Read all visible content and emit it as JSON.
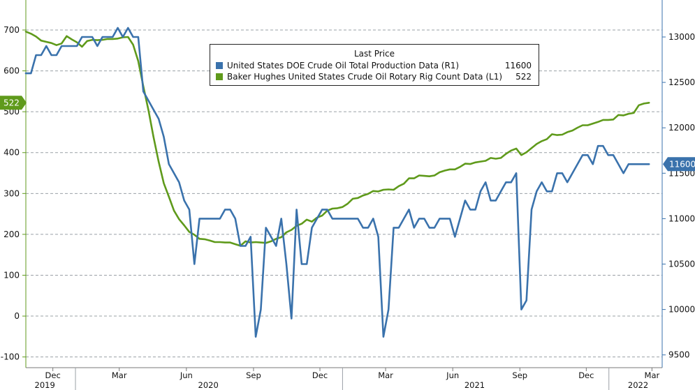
{
  "legend": {
    "header": "Last Price",
    "series": [
      {
        "label": "United States DOE Crude Oil Total Production Data  (R1)",
        "value": "11600",
        "color": "#3a72ac"
      },
      {
        "label": "Baker Hughes United States Crude Oil Rotary Rig Count Data  (L1)",
        "value": "522",
        "color": "#5f9a1b"
      }
    ]
  },
  "badges": {
    "left": "522",
    "right": "11600"
  },
  "chart_data": {
    "type": "line",
    "x_tick_labels": [
      "Dec",
      "Mar",
      "Jun",
      "Sep",
      "Dec",
      "Mar",
      "Jun",
      "Sep",
      "Dec",
      "Mar"
    ],
    "year_labels": [
      "2019",
      "2020",
      "2021",
      "2022"
    ],
    "y_left": {
      "ticks": [
        700,
        600,
        500,
        400,
        300,
        200,
        100,
        0,
        -100
      ],
      "range": [
        -110,
        770
      ]
    },
    "y_right": {
      "ticks": [
        13000,
        12500,
        12000,
        11500,
        11000,
        10500,
        10000,
        9500
      ],
      "range": [
        9400,
        13400
      ]
    },
    "series": [
      {
        "name": "Baker Hughes United States Crude Oil Rotary Rig Count Data  (L1)",
        "axis": "left",
        "color": "#5f9a1b",
        "last": 522,
        "points": [
          [
            "2019-10-25",
            696
          ],
          [
            "2019-11-01",
            691
          ],
          [
            "2019-11-08",
            684
          ],
          [
            "2019-11-15",
            674
          ],
          [
            "2019-11-22",
            671
          ],
          [
            "2019-11-29",
            668
          ],
          [
            "2019-12-06",
            663
          ],
          [
            "2019-12-13",
            667
          ],
          [
            "2019-12-20",
            685
          ],
          [
            "2019-12-27",
            677
          ],
          [
            "2020-01-03",
            670
          ],
          [
            "2020-01-10",
            659
          ],
          [
            "2020-01-17",
            673
          ],
          [
            "2020-01-24",
            676
          ],
          [
            "2020-01-31",
            675
          ],
          [
            "2020-02-07",
            676
          ],
          [
            "2020-02-14",
            678
          ],
          [
            "2020-02-21",
            678
          ],
          [
            "2020-02-28",
            679
          ],
          [
            "2020-03-06",
            682
          ],
          [
            "2020-03-13",
            683
          ],
          [
            "2020-03-20",
            664
          ],
          [
            "2020-03-27",
            624
          ],
          [
            "2020-04-03",
            562
          ],
          [
            "2020-04-10",
            504
          ],
          [
            "2020-04-17",
            438
          ],
          [
            "2020-04-24",
            378
          ],
          [
            "2020-05-01",
            325
          ],
          [
            "2020-05-08",
            292
          ],
          [
            "2020-05-15",
            258
          ],
          [
            "2020-05-22",
            237
          ],
          [
            "2020-05-29",
            222
          ],
          [
            "2020-06-05",
            206
          ],
          [
            "2020-06-12",
            199
          ],
          [
            "2020-06-19",
            189
          ],
          [
            "2020-06-26",
            188
          ],
          [
            "2020-07-03",
            185
          ],
          [
            "2020-07-10",
            181
          ],
          [
            "2020-07-17",
            181
          ],
          [
            "2020-07-24",
            180
          ],
          [
            "2020-07-31",
            180
          ],
          [
            "2020-08-07",
            176
          ],
          [
            "2020-08-14",
            172
          ],
          [
            "2020-08-21",
            183
          ],
          [
            "2020-08-28",
            180
          ],
          [
            "2020-09-04",
            181
          ],
          [
            "2020-09-11",
            180
          ],
          [
            "2020-09-18",
            179
          ],
          [
            "2020-09-25",
            183
          ],
          [
            "2020-10-02",
            189
          ],
          [
            "2020-10-09",
            193
          ],
          [
            "2020-10-16",
            205
          ],
          [
            "2020-10-23",
            211
          ],
          [
            "2020-10-30",
            221
          ],
          [
            "2020-11-06",
            226
          ],
          [
            "2020-11-13",
            236
          ],
          [
            "2020-11-20",
            231
          ],
          [
            "2020-11-27",
            241
          ],
          [
            "2020-12-04",
            246
          ],
          [
            "2020-12-11",
            258
          ],
          [
            "2020-12-18",
            263
          ],
          [
            "2020-12-25",
            264
          ],
          [
            "2021-01-01",
            267
          ],
          [
            "2021-01-08",
            275
          ],
          [
            "2021-01-15",
            287
          ],
          [
            "2021-01-22",
            289
          ],
          [
            "2021-01-29",
            295
          ],
          [
            "2021-02-05",
            299
          ],
          [
            "2021-02-12",
            306
          ],
          [
            "2021-02-19",
            305
          ],
          [
            "2021-02-26",
            309
          ],
          [
            "2021-03-05",
            310
          ],
          [
            "2021-03-12",
            309
          ],
          [
            "2021-03-19",
            318
          ],
          [
            "2021-03-26",
            324
          ],
          [
            "2021-04-02",
            337
          ],
          [
            "2021-04-09",
            337
          ],
          [
            "2021-04-16",
            344
          ],
          [
            "2021-04-23",
            343
          ],
          [
            "2021-04-30",
            342
          ],
          [
            "2021-05-07",
            344
          ],
          [
            "2021-05-14",
            352
          ],
          [
            "2021-05-21",
            356
          ],
          [
            "2021-05-28",
            359
          ],
          [
            "2021-06-04",
            359
          ],
          [
            "2021-06-11",
            365
          ],
          [
            "2021-06-18",
            373
          ],
          [
            "2021-06-25",
            372
          ],
          [
            "2021-07-02",
            376
          ],
          [
            "2021-07-09",
            378
          ],
          [
            "2021-07-16",
            380
          ],
          [
            "2021-07-23",
            387
          ],
          [
            "2021-07-30",
            385
          ],
          [
            "2021-08-06",
            387
          ],
          [
            "2021-08-13",
            397
          ],
          [
            "2021-08-20",
            405
          ],
          [
            "2021-08-27",
            410
          ],
          [
            "2021-09-03",
            394
          ],
          [
            "2021-09-10",
            401
          ],
          [
            "2021-09-17",
            411
          ],
          [
            "2021-09-24",
            421
          ],
          [
            "2021-10-01",
            428
          ],
          [
            "2021-10-08",
            433
          ],
          [
            "2021-10-15",
            445
          ],
          [
            "2021-10-22",
            443
          ],
          [
            "2021-10-29",
            444
          ],
          [
            "2021-11-05",
            450
          ],
          [
            "2021-11-12",
            454
          ],
          [
            "2021-11-19",
            461
          ],
          [
            "2021-11-26",
            467
          ],
          [
            "2021-12-03",
            467
          ],
          [
            "2021-12-10",
            471
          ],
          [
            "2021-12-17",
            475
          ],
          [
            "2021-12-24",
            480
          ],
          [
            "2021-12-31",
            480
          ],
          [
            "2022-01-07",
            481
          ],
          [
            "2022-01-14",
            492
          ],
          [
            "2022-01-21",
            491
          ],
          [
            "2022-01-28",
            495
          ],
          [
            "2022-02-04",
            497
          ],
          [
            "2022-02-11",
            516
          ],
          [
            "2022-02-18",
            520
          ],
          [
            "2022-02-25",
            522
          ]
        ]
      },
      {
        "name": "United States DOE Crude Oil Total Production Data  (R1)",
        "axis": "right",
        "color": "#3a72ac",
        "last": 11600,
        "points": [
          [
            "2019-10-25",
            12600
          ],
          [
            "2019-11-01",
            12600
          ],
          [
            "2019-11-08",
            12800
          ],
          [
            "2019-11-15",
            12800
          ],
          [
            "2019-11-22",
            12900
          ],
          [
            "2019-11-29",
            12800
          ],
          [
            "2019-12-06",
            12800
          ],
          [
            "2019-12-13",
            12900
          ],
          [
            "2019-12-20",
            12900
          ],
          [
            "2019-12-27",
            12900
          ],
          [
            "2020-01-03",
            12900
          ],
          [
            "2020-01-10",
            13000
          ],
          [
            "2020-01-17",
            13000
          ],
          [
            "2020-01-24",
            13000
          ],
          [
            "2020-01-31",
            12900
          ],
          [
            "2020-02-07",
            13000
          ],
          [
            "2020-02-14",
            13000
          ],
          [
            "2020-02-21",
            13000
          ],
          [
            "2020-02-28",
            13100
          ],
          [
            "2020-03-06",
            13000
          ],
          [
            "2020-03-13",
            13100
          ],
          [
            "2020-03-20",
            13000
          ],
          [
            "2020-03-27",
            13000
          ],
          [
            "2020-04-03",
            12400
          ],
          [
            "2020-04-10",
            12300
          ],
          [
            "2020-04-17",
            12200
          ],
          [
            "2020-04-24",
            12100
          ],
          [
            "2020-05-01",
            11900
          ],
          [
            "2020-05-08",
            11600
          ],
          [
            "2020-05-15",
            11500
          ],
          [
            "2020-05-22",
            11400
          ],
          [
            "2020-05-29",
            11200
          ],
          [
            "2020-06-05",
            11100
          ],
          [
            "2020-06-12",
            10500
          ],
          [
            "2020-06-19",
            11000
          ],
          [
            "2020-06-26",
            11000
          ],
          [
            "2020-07-03",
            11000
          ],
          [
            "2020-07-10",
            11000
          ],
          [
            "2020-07-17",
            11000
          ],
          [
            "2020-07-24",
            11100
          ],
          [
            "2020-07-31",
            11100
          ],
          [
            "2020-08-07",
            11000
          ],
          [
            "2020-08-14",
            10700
          ],
          [
            "2020-08-21",
            10700
          ],
          [
            "2020-08-28",
            10800
          ],
          [
            "2020-09-04",
            9700
          ],
          [
            "2020-09-11",
            10000
          ],
          [
            "2020-09-18",
            10900
          ],
          [
            "2020-09-25",
            10800
          ],
          [
            "2020-10-02",
            10700
          ],
          [
            "2020-10-09",
            11000
          ],
          [
            "2020-10-16",
            10500
          ],
          [
            "2020-10-23",
            9900
          ],
          [
            "2020-10-30",
            11100
          ],
          [
            "2020-11-06",
            10500
          ],
          [
            "2020-11-13",
            10500
          ],
          [
            "2020-11-20",
            10900
          ],
          [
            "2020-11-27",
            11000
          ],
          [
            "2020-12-04",
            11100
          ],
          [
            "2020-12-11",
            11100
          ],
          [
            "2020-12-18",
            11000
          ],
          [
            "2020-12-25",
            11000
          ],
          [
            "2021-01-01",
            11000
          ],
          [
            "2021-01-08",
            11000
          ],
          [
            "2021-01-15",
            11000
          ],
          [
            "2021-01-22",
            11000
          ],
          [
            "2021-01-29",
            10900
          ],
          [
            "2021-02-05",
            10900
          ],
          [
            "2021-02-12",
            11000
          ],
          [
            "2021-02-19",
            10800
          ],
          [
            "2021-02-26",
            9700
          ],
          [
            "2021-03-05",
            10000
          ],
          [
            "2021-03-12",
            10900
          ],
          [
            "2021-03-19",
            10900
          ],
          [
            "2021-03-26",
            11000
          ],
          [
            "2021-04-02",
            11100
          ],
          [
            "2021-04-09",
            10900
          ],
          [
            "2021-04-16",
            11000
          ],
          [
            "2021-04-23",
            11000
          ],
          [
            "2021-04-30",
            10900
          ],
          [
            "2021-05-07",
            10900
          ],
          [
            "2021-05-14",
            11000
          ],
          [
            "2021-05-21",
            11000
          ],
          [
            "2021-05-28",
            11000
          ],
          [
            "2021-06-04",
            10800
          ],
          [
            "2021-06-11",
            11000
          ],
          [
            "2021-06-18",
            11200
          ],
          [
            "2021-06-25",
            11100
          ],
          [
            "2021-07-02",
            11100
          ],
          [
            "2021-07-09",
            11300
          ],
          [
            "2021-07-16",
            11400
          ],
          [
            "2021-07-23",
            11200
          ],
          [
            "2021-07-30",
            11200
          ],
          [
            "2021-08-06",
            11300
          ],
          [
            "2021-08-13",
            11400
          ],
          [
            "2021-08-20",
            11400
          ],
          [
            "2021-08-27",
            11500
          ],
          [
            "2021-09-03",
            10000
          ],
          [
            "2021-09-10",
            10100
          ],
          [
            "2021-09-17",
            11100
          ],
          [
            "2021-09-24",
            11300
          ],
          [
            "2021-10-01",
            11400
          ],
          [
            "2021-10-08",
            11300
          ],
          [
            "2021-10-15",
            11300
          ],
          [
            "2021-10-22",
            11500
          ],
          [
            "2021-10-29",
            11500
          ],
          [
            "2021-11-05",
            11400
          ],
          [
            "2021-11-12",
            11500
          ],
          [
            "2021-11-19",
            11600
          ],
          [
            "2021-11-26",
            11700
          ],
          [
            "2021-12-03",
            11700
          ],
          [
            "2021-12-10",
            11600
          ],
          [
            "2021-12-17",
            11800
          ],
          [
            "2021-12-24",
            11800
          ],
          [
            "2021-12-31",
            11700
          ],
          [
            "2022-01-07",
            11700
          ],
          [
            "2022-01-14",
            11600
          ],
          [
            "2022-01-21",
            11500
          ],
          [
            "2022-01-28",
            11600
          ],
          [
            "2022-02-04",
            11600
          ],
          [
            "2022-02-11",
            11600
          ],
          [
            "2022-02-18",
            11600
          ],
          [
            "2022-02-25",
            11600
          ]
        ]
      }
    ]
  }
}
